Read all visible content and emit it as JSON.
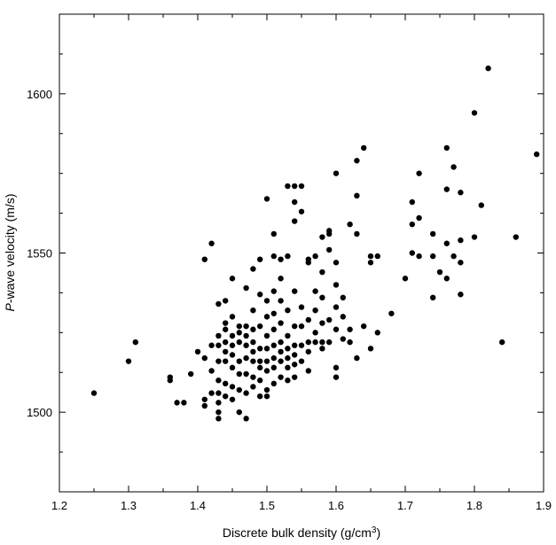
{
  "chart_data": {
    "type": "scatter",
    "title": "",
    "xlabel_parts": [
      "Discrete bulk density (g/cm",
      "3",
      ")"
    ],
    "ylabel_parts": [
      "P",
      "-wave velocity (m/s)"
    ],
    "xlim": [
      1.2,
      1.9
    ],
    "ylim": [
      1475,
      1625
    ],
    "xticks": [
      1.2,
      1.3,
      1.4,
      1.5,
      1.6,
      1.7,
      1.8,
      1.9
    ],
    "xtick_labels": [
      "1.2",
      "1.3",
      "1.4",
      "1.5",
      "1.6",
      "1.7",
      "1.8",
      "1.9"
    ],
    "yticks": [
      1500,
      1550,
      1600
    ],
    "ytick_labels": [
      "1500",
      "1550",
      "1600"
    ],
    "grid": false,
    "legend": "none",
    "marker_color": "#000000",
    "points": [
      [
        1.25,
        1506
      ],
      [
        1.3,
        1516
      ],
      [
        1.31,
        1522
      ],
      [
        1.36,
        1511
      ],
      [
        1.36,
        1510
      ],
      [
        1.37,
        1503
      ],
      [
        1.38,
        1503
      ],
      [
        1.39,
        1512
      ],
      [
        1.4,
        1519
      ],
      [
        1.41,
        1517
      ],
      [
        1.41,
        1548
      ],
      [
        1.41,
        1504
      ],
      [
        1.41,
        1502
      ],
      [
        1.42,
        1553
      ],
      [
        1.42,
        1506
      ],
      [
        1.42,
        1521
      ],
      [
        1.42,
        1513
      ],
      [
        1.43,
        1534
      ],
      [
        1.43,
        1524
      ],
      [
        1.43,
        1521
      ],
      [
        1.43,
        1516
      ],
      [
        1.43,
        1510
      ],
      [
        1.43,
        1506
      ],
      [
        1.43,
        1503
      ],
      [
        1.43,
        1500
      ],
      [
        1.43,
        1498
      ],
      [
        1.44,
        1535
      ],
      [
        1.44,
        1528
      ],
      [
        1.44,
        1526
      ],
      [
        1.44,
        1522
      ],
      [
        1.44,
        1519
      ],
      [
        1.44,
        1516
      ],
      [
        1.44,
        1509
      ],
      [
        1.44,
        1505
      ],
      [
        1.45,
        1542
      ],
      [
        1.45,
        1530
      ],
      [
        1.45,
        1524
      ],
      [
        1.45,
        1521
      ],
      [
        1.45,
        1518
      ],
      [
        1.45,
        1514
      ],
      [
        1.45,
        1508
      ],
      [
        1.45,
        1504
      ],
      [
        1.46,
        1527
      ],
      [
        1.46,
        1525
      ],
      [
        1.46,
        1522
      ],
      [
        1.46,
        1516
      ],
      [
        1.46,
        1512
      ],
      [
        1.46,
        1507
      ],
      [
        1.46,
        1500
      ],
      [
        1.47,
        1539
      ],
      [
        1.47,
        1527
      ],
      [
        1.47,
        1524
      ],
      [
        1.47,
        1521
      ],
      [
        1.47,
        1517
      ],
      [
        1.47,
        1512
      ],
      [
        1.47,
        1506
      ],
      [
        1.47,
        1498
      ],
      [
        1.48,
        1545
      ],
      [
        1.48,
        1532
      ],
      [
        1.48,
        1526
      ],
      [
        1.48,
        1522
      ],
      [
        1.48,
        1519
      ],
      [
        1.48,
        1516
      ],
      [
        1.48,
        1511
      ],
      [
        1.48,
        1508
      ],
      [
        1.49,
        1548
      ],
      [
        1.49,
        1537
      ],
      [
        1.49,
        1527
      ],
      [
        1.49,
        1520
      ],
      [
        1.49,
        1516
      ],
      [
        1.49,
        1514
      ],
      [
        1.49,
        1510
      ],
      [
        1.49,
        1505
      ],
      [
        1.5,
        1567
      ],
      [
        1.5,
        1535
      ],
      [
        1.5,
        1530
      ],
      [
        1.5,
        1524
      ],
      [
        1.5,
        1520
      ],
      [
        1.5,
        1516
      ],
      [
        1.5,
        1513
      ],
      [
        1.5,
        1507
      ],
      [
        1.5,
        1505
      ],
      [
        1.51,
        1556
      ],
      [
        1.51,
        1549
      ],
      [
        1.51,
        1538
      ],
      [
        1.51,
        1531
      ],
      [
        1.51,
        1526
      ],
      [
        1.51,
        1521
      ],
      [
        1.51,
        1517
      ],
      [
        1.51,
        1514
      ],
      [
        1.51,
        1509
      ],
      [
        1.52,
        1548
      ],
      [
        1.52,
        1542
      ],
      [
        1.52,
        1535
      ],
      [
        1.52,
        1528
      ],
      [
        1.52,
        1522
      ],
      [
        1.52,
        1519
      ],
      [
        1.52,
        1516
      ],
      [
        1.52,
        1511
      ],
      [
        1.53,
        1571
      ],
      [
        1.53,
        1549
      ],
      [
        1.53,
        1532
      ],
      [
        1.53,
        1524
      ],
      [
        1.53,
        1520
      ],
      [
        1.53,
        1517
      ],
      [
        1.53,
        1514
      ],
      [
        1.53,
        1510
      ],
      [
        1.54,
        1571
      ],
      [
        1.54,
        1566
      ],
      [
        1.54,
        1560
      ],
      [
        1.54,
        1538
      ],
      [
        1.54,
        1527
      ],
      [
        1.54,
        1521
      ],
      [
        1.54,
        1518
      ],
      [
        1.54,
        1515
      ],
      [
        1.54,
        1511
      ],
      [
        1.55,
        1571
      ],
      [
        1.55,
        1563
      ],
      [
        1.55,
        1533
      ],
      [
        1.55,
        1527
      ],
      [
        1.55,
        1521
      ],
      [
        1.55,
        1516
      ],
      [
        1.56,
        1548
      ],
      [
        1.56,
        1547
      ],
      [
        1.56,
        1529
      ],
      [
        1.56,
        1522
      ],
      [
        1.56,
        1519
      ],
      [
        1.56,
        1513
      ],
      [
        1.57,
        1549
      ],
      [
        1.57,
        1538
      ],
      [
        1.57,
        1532
      ],
      [
        1.57,
        1525
      ],
      [
        1.57,
        1522
      ],
      [
        1.58,
        1555
      ],
      [
        1.58,
        1544
      ],
      [
        1.58,
        1536
      ],
      [
        1.58,
        1528
      ],
      [
        1.58,
        1522
      ],
      [
        1.58,
        1520
      ],
      [
        1.59,
        1557
      ],
      [
        1.59,
        1556
      ],
      [
        1.59,
        1551
      ],
      [
        1.59,
        1529
      ],
      [
        1.59,
        1522
      ],
      [
        1.6,
        1575
      ],
      [
        1.6,
        1547
      ],
      [
        1.6,
        1540
      ],
      [
        1.6,
        1533
      ],
      [
        1.6,
        1526
      ],
      [
        1.6,
        1514
      ],
      [
        1.6,
        1511
      ],
      [
        1.61,
        1536
      ],
      [
        1.61,
        1530
      ],
      [
        1.61,
        1523
      ],
      [
        1.62,
        1559
      ],
      [
        1.62,
        1526
      ],
      [
        1.62,
        1522
      ],
      [
        1.63,
        1579
      ],
      [
        1.63,
        1568
      ],
      [
        1.63,
        1556
      ],
      [
        1.63,
        1517
      ],
      [
        1.64,
        1583
      ],
      [
        1.64,
        1527
      ],
      [
        1.65,
        1549
      ],
      [
        1.65,
        1547
      ],
      [
        1.65,
        1520
      ],
      [
        1.66,
        1549
      ],
      [
        1.66,
        1525
      ],
      [
        1.68,
        1531
      ],
      [
        1.7,
        1542
      ],
      [
        1.71,
        1566
      ],
      [
        1.71,
        1559
      ],
      [
        1.71,
        1550
      ],
      [
        1.72,
        1575
      ],
      [
        1.72,
        1561
      ],
      [
        1.72,
        1549
      ],
      [
        1.74,
        1556
      ],
      [
        1.74,
        1549
      ],
      [
        1.74,
        1536
      ],
      [
        1.75,
        1544
      ],
      [
        1.76,
        1583
      ],
      [
        1.76,
        1570
      ],
      [
        1.76,
        1553
      ],
      [
        1.76,
        1542
      ],
      [
        1.77,
        1577
      ],
      [
        1.77,
        1549
      ],
      [
        1.78,
        1569
      ],
      [
        1.78,
        1554
      ],
      [
        1.78,
        1547
      ],
      [
        1.78,
        1537
      ],
      [
        1.8,
        1594
      ],
      [
        1.8,
        1555
      ],
      [
        1.81,
        1565
      ],
      [
        1.82,
        1608
      ],
      [
        1.84,
        1522
      ],
      [
        1.86,
        1555
      ],
      [
        1.89,
        1581
      ]
    ]
  }
}
